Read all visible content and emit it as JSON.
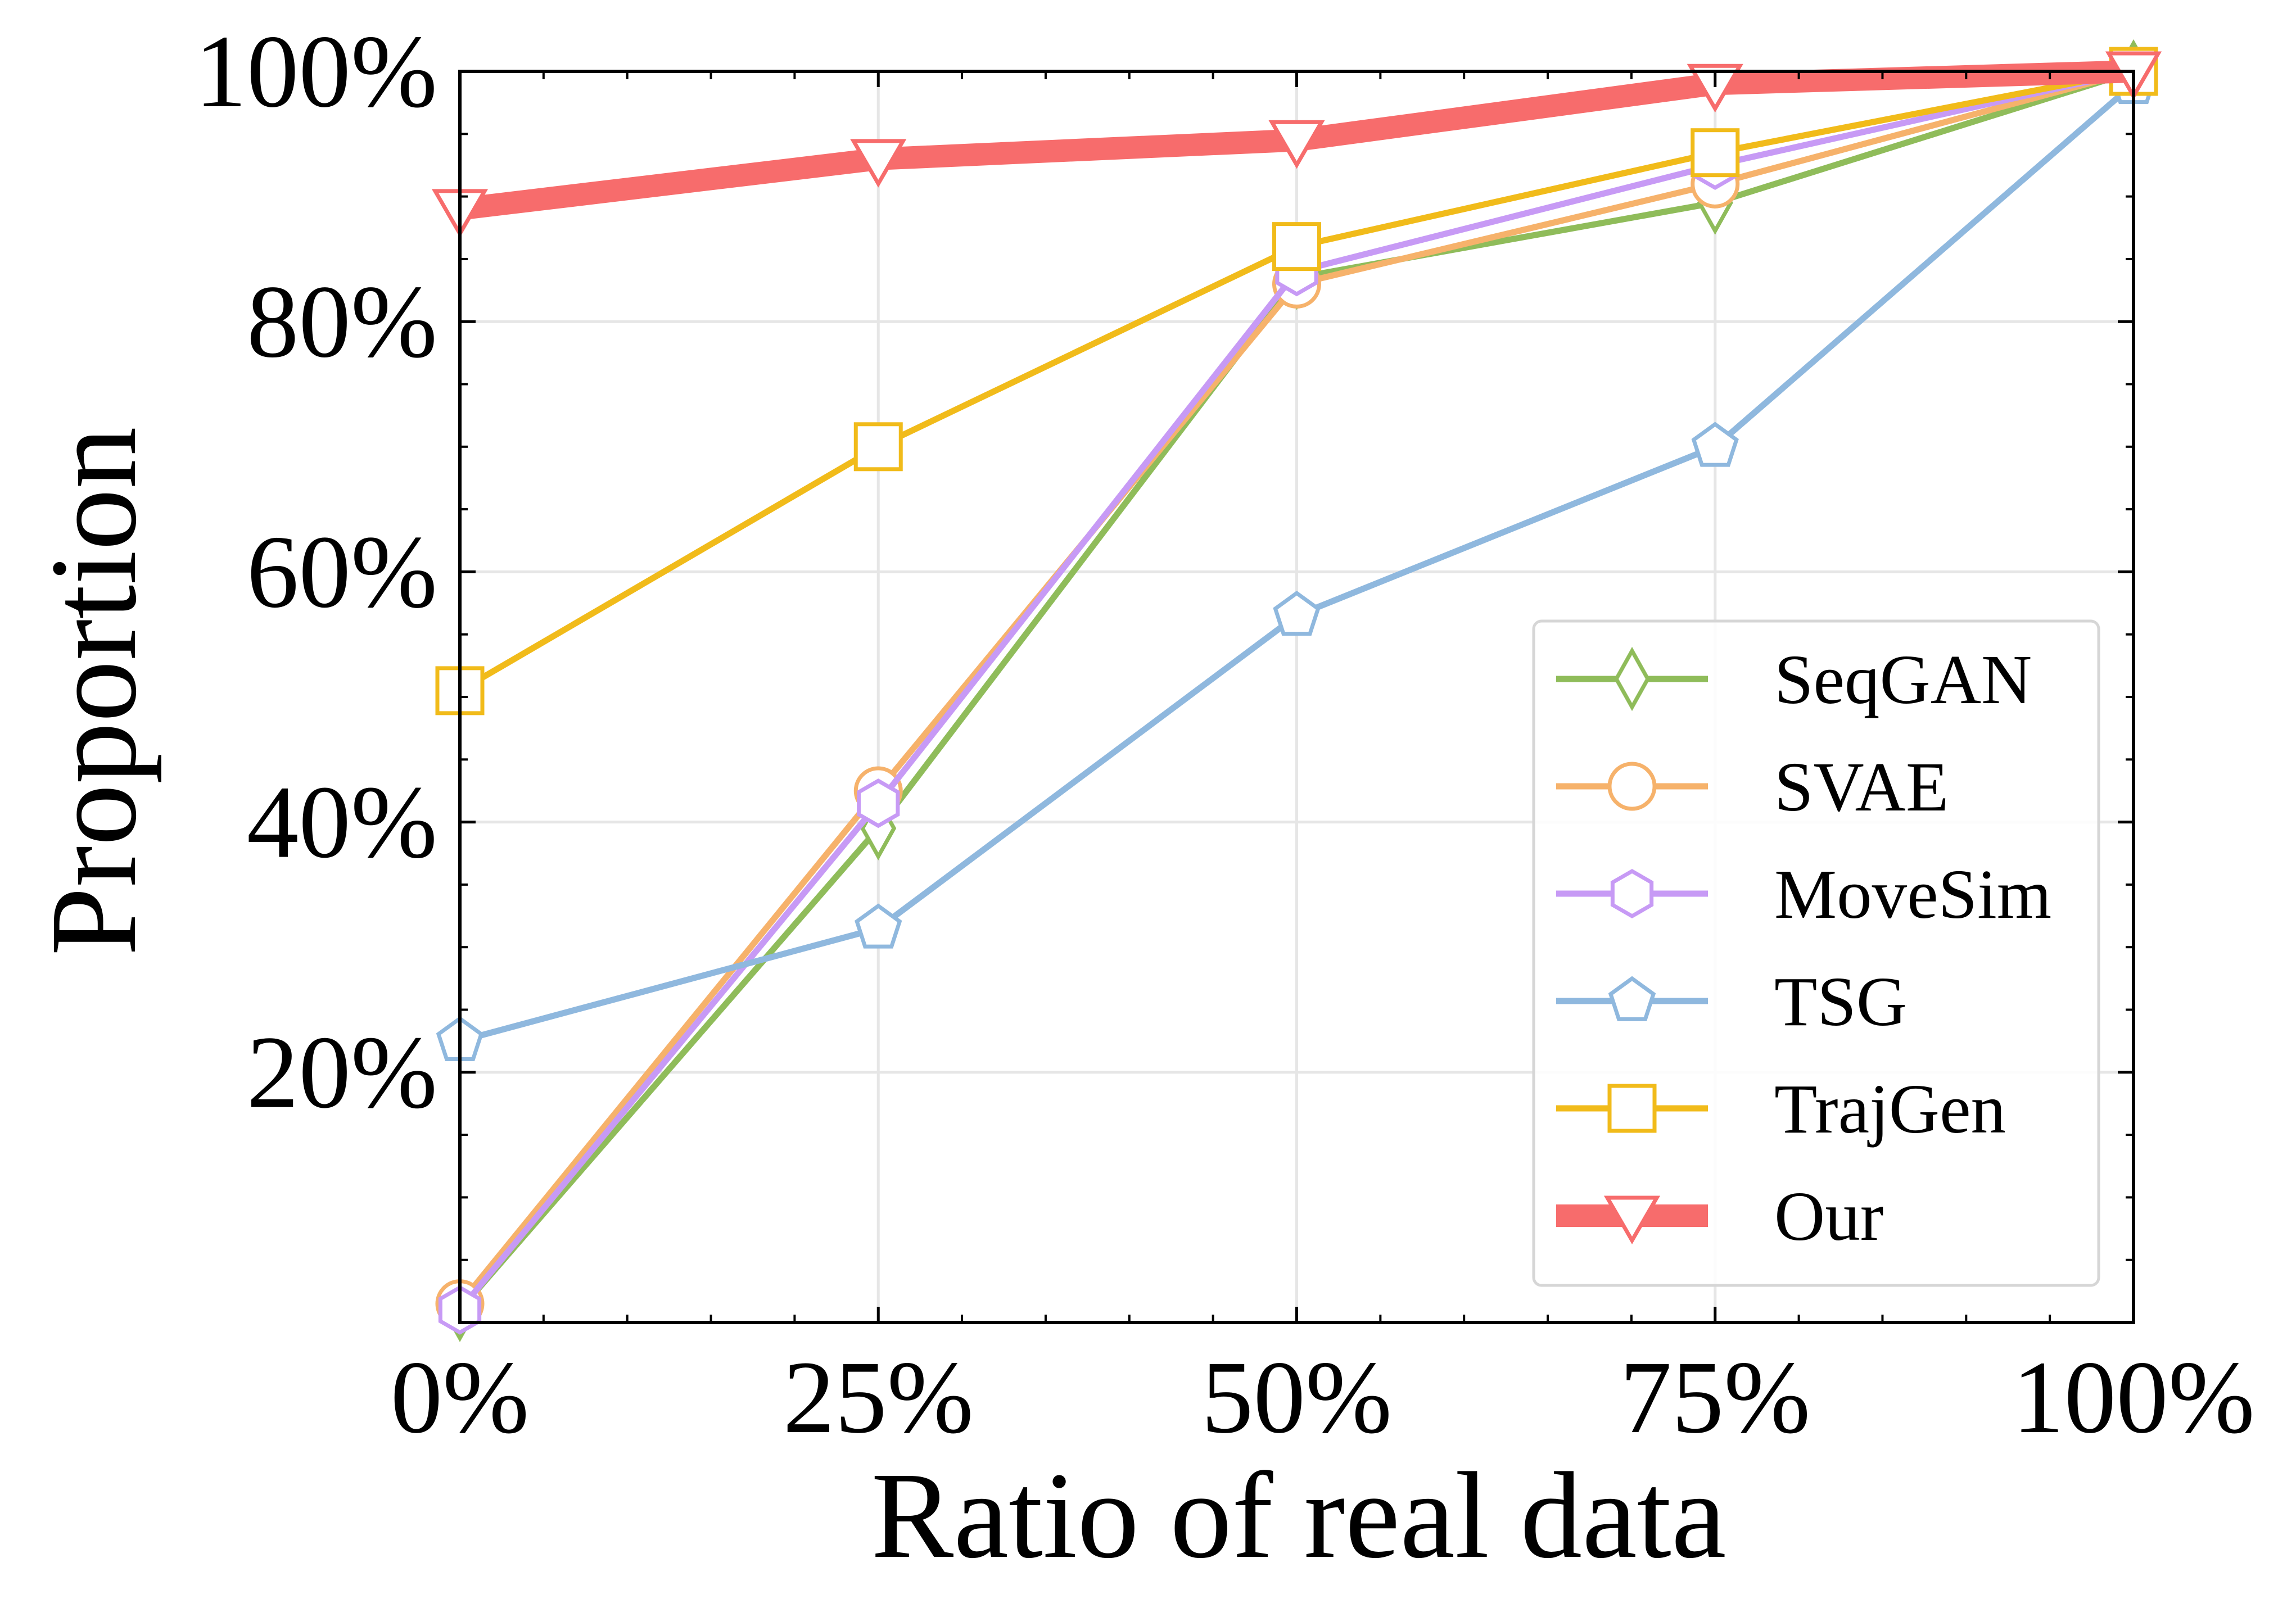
{
  "chart_data": {
    "type": "line",
    "xlabel": "Ratio of real data",
    "ylabel": "Proportion",
    "x": [
      0,
      25,
      50,
      75,
      100
    ],
    "xlim": [
      0,
      100
    ],
    "ylim": [
      0,
      100
    ],
    "xticks": [
      0,
      25,
      50,
      75,
      100
    ],
    "xtick_labels": [
      "0%",
      "25%",
      "50%",
      "75%",
      "100%"
    ],
    "yticks": [
      20,
      40,
      60,
      80,
      100
    ],
    "ytick_labels": [
      "20%",
      "40%",
      "60%",
      "80%",
      "100%"
    ],
    "grid": true,
    "legend_position": "lower-right",
    "series": [
      {
        "name": "SeqGAN",
        "values": [
          1,
          39.5,
          83.5,
          89.5,
          100
        ],
        "color": "#8fbc5a",
        "marker": "diamond"
      },
      {
        "name": "SVAE",
        "values": [
          1.5,
          42.5,
          83,
          91,
          100
        ],
        "color": "#f6b26b",
        "marker": "circle"
      },
      {
        "name": "MoveSim",
        "values": [
          1,
          41.5,
          84,
          92.5,
          100
        ],
        "color": "#c79af5",
        "marker": "hexagon"
      },
      {
        "name": "TSG",
        "values": [
          22.5,
          31.5,
          56.5,
          70,
          99
        ],
        "color": "#8fb8de",
        "marker": "pentagon"
      },
      {
        "name": "TrajGen",
        "values": [
          50.5,
          70,
          86,
          93.5,
          100
        ],
        "color": "#f1bb1a",
        "marker": "square"
      },
      {
        "name": "Our",
        "values": [
          89,
          93,
          94.5,
          99,
          100
        ],
        "color": "#f76c6c",
        "marker": "triangle-down"
      }
    ]
  }
}
